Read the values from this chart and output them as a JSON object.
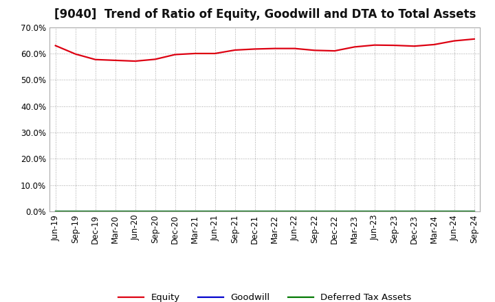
{
  "title": "[9040]  Trend of Ratio of Equity, Goodwill and DTA to Total Assets",
  "x_labels": [
    "Jun-19",
    "Sep-19",
    "Dec-19",
    "Mar-20",
    "Jun-20",
    "Sep-20",
    "Dec-20",
    "Mar-21",
    "Jun-21",
    "Sep-21",
    "Dec-21",
    "Mar-22",
    "Jun-22",
    "Sep-22",
    "Dec-22",
    "Mar-23",
    "Jun-23",
    "Sep-23",
    "Dec-23",
    "Mar-24",
    "Jun-24",
    "Sep-24"
  ],
  "equity": [
    0.63,
    0.598,
    0.577,
    0.574,
    0.571,
    0.578,
    0.596,
    0.6,
    0.6,
    0.613,
    0.617,
    0.619,
    0.619,
    0.612,
    0.61,
    0.625,
    0.632,
    0.631,
    0.628,
    0.634,
    0.648,
    0.655
  ],
  "goodwill": [
    0.0,
    0.0,
    0.0,
    0.0,
    0.0,
    0.0,
    0.0,
    0.0,
    0.0,
    0.0,
    0.0,
    0.0,
    0.0,
    0.0,
    0.0,
    0.0,
    0.0,
    0.0,
    0.0,
    0.0,
    0.0,
    0.0
  ],
  "dta": [
    0.0,
    0.0,
    0.0,
    0.0,
    0.0,
    0.0,
    0.0,
    0.0,
    0.0,
    0.0,
    0.0,
    0.0,
    0.0,
    0.0,
    0.0,
    0.0,
    0.0,
    0.0,
    0.0,
    0.0,
    0.0,
    0.0
  ],
  "equity_color": "#dd0011",
  "goodwill_color": "#0000cc",
  "dta_color": "#007700",
  "ylim": [
    0.0,
    0.7
  ],
  "yticks": [
    0.0,
    0.1,
    0.2,
    0.3,
    0.4,
    0.5,
    0.6,
    0.7
  ],
  "background_color": "#ffffff",
  "plot_bg_color": "#ffffff",
  "grid_color": "#999999",
  "title_fontsize": 12,
  "axis_fontsize": 8.5,
  "legend_fontsize": 9.5
}
